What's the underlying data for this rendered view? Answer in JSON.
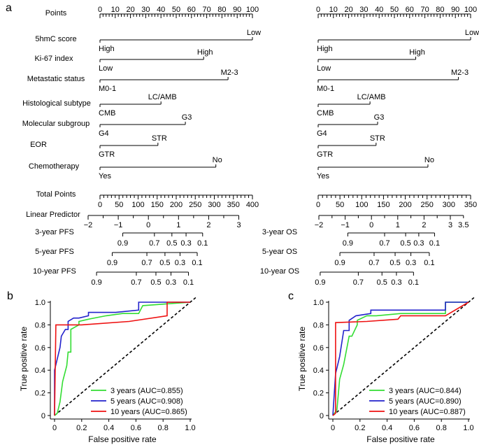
{
  "panel_labels": {
    "a": "a",
    "b": "b",
    "c": "c"
  },
  "colors": {
    "green": "#33dd33",
    "blue": "#2222cc",
    "red": "#ee1111",
    "axis": "#000000"
  },
  "chart_data": [
    {
      "type": "nomogram",
      "panel": "a-left",
      "row_labels": {
        "points": "Points",
        "hmc": "5hmC score",
        "ki67": "Ki-67 index",
        "meta": "Metastatic status",
        "histo": "Histological subtype",
        "mol": "Molecular subgroup",
        "eor": "EOR",
        "chemo": "Chemotherapy",
        "total": "Total Points",
        "lp": "Linear Predictor",
        "y3": "3-year PFS",
        "y5": "5-year PFS",
        "y10": "10-year PFS"
      },
      "points_ticks": [
        "0",
        "10",
        "20",
        "30",
        "40",
        "50",
        "60",
        "70",
        "80",
        "90",
        "100"
      ],
      "variables": [
        {
          "key": "hmc",
          "points": [
            0,
            100
          ],
          "end_labels": [
            "High",
            "Low"
          ]
        },
        {
          "key": "ki67",
          "points": [
            0,
            68
          ],
          "end_labels": [
            "Low",
            "High"
          ]
        },
        {
          "key": "meta",
          "points": [
            0,
            84
          ],
          "end_labels": [
            "M0-1",
            "M2-3"
          ]
        },
        {
          "key": "histo",
          "points": [
            0,
            40
          ],
          "end_labels": [
            "CMB",
            "LC/AMB"
          ]
        },
        {
          "key": "mol",
          "points": [
            0,
            56
          ],
          "end_labels": [
            "G4",
            "G3"
          ]
        },
        {
          "key": "eor",
          "points": [
            0,
            38
          ],
          "end_labels": [
            "GTR",
            "STR"
          ]
        },
        {
          "key": "chemo",
          "points": [
            0,
            76
          ],
          "end_labels": [
            "Yes",
            "No"
          ]
        }
      ],
      "total_points": {
        "range": [
          0,
          400
        ],
        "ticks": [
          "0",
          "50",
          "100",
          "150",
          "200",
          "250",
          "300",
          "350",
          "400"
        ]
      },
      "linear_predictor": {
        "ticks": [
          {
            "v": -2,
            "label": "−2"
          },
          {
            "v": -1,
            "label": "−1"
          },
          {
            "v": 0,
            "label": "0"
          },
          {
            "v": 1,
            "label": "1"
          },
          {
            "v": 2,
            "label": "2"
          },
          {
            "v": 3,
            "label": "3"
          }
        ]
      },
      "survival_scales": [
        {
          "key": "y3",
          "ticks": [
            {
              "lp": -0.85,
              "label": "0.9"
            },
            {
              "lp": 0.2,
              "label": "0.7"
            },
            {
              "lp": 0.78,
              "label": "0.5"
            },
            {
              "lp": 1.25,
              "label": "0.3"
            },
            {
              "lp": 1.8,
              "label": "0.1"
            }
          ]
        },
        {
          "key": "y5",
          "ticks": [
            {
              "lp": -1.2,
              "label": "0.9"
            },
            {
              "lp": -0.05,
              "label": "0.7"
            },
            {
              "lp": 0.55,
              "label": "0.5"
            },
            {
              "lp": 1.05,
              "label": "0.3"
            },
            {
              "lp": 1.62,
              "label": "0.1"
            }
          ]
        },
        {
          "key": "y10",
          "ticks": [
            {
              "lp": -1.72,
              "label": "0.9"
            },
            {
              "lp": -0.4,
              "label": "0.7"
            },
            {
              "lp": 0.25,
              "label": "0.5"
            },
            {
              "lp": 0.75,
              "label": "0.3"
            },
            {
              "lp": 1.33,
              "label": "0.1"
            }
          ]
        }
      ]
    },
    {
      "type": "nomogram",
      "panel": "a-right",
      "row_labels": {
        "y3": "3-year OS",
        "y5": "5-year OS",
        "y10": "10-year OS"
      },
      "points_ticks": [
        "0",
        "10",
        "20",
        "30",
        "40",
        "50",
        "60",
        "70",
        "80",
        "90",
        "100"
      ],
      "variables": [
        {
          "key": "hmc",
          "points": [
            0,
            100
          ],
          "end_labels": [
            "High",
            "Low"
          ]
        },
        {
          "key": "ki67",
          "points": [
            0,
            64
          ],
          "end_labels": [
            "Low",
            "High"
          ]
        },
        {
          "key": "meta",
          "points": [
            0,
            92
          ],
          "end_labels": [
            "M0-1",
            "M2-3"
          ]
        },
        {
          "key": "histo",
          "points": [
            0,
            34
          ],
          "end_labels": [
            "CMB",
            "LC/AMB"
          ]
        },
        {
          "key": "mol",
          "points": [
            0,
            39
          ],
          "end_labels": [
            "G4",
            "G3"
          ]
        },
        {
          "key": "eor",
          "points": [
            0,
            38
          ],
          "end_labels": [
            "GTR",
            "STR"
          ]
        },
        {
          "key": "chemo",
          "points": [
            0,
            72
          ],
          "end_labels": [
            "Yes",
            "No"
          ]
        }
      ],
      "total_points": {
        "range": [
          0,
          350
        ],
        "ticks": [
          "0",
          "50",
          "100",
          "150",
          "200",
          "250",
          "300",
          "350"
        ]
      },
      "linear_predictor": {
        "ticks": [
          {
            "v": -2,
            "label": "−2"
          },
          {
            "v": -1,
            "label": "−1"
          },
          {
            "v": 0,
            "label": "0"
          },
          {
            "v": 1,
            "label": "1"
          },
          {
            "v": 2,
            "label": "2"
          },
          {
            "v": 3,
            "label": "3"
          },
          {
            "v": 3.5,
            "label": "3.5"
          }
        ]
      },
      "survival_scales": [
        {
          "key": "y3",
          "ticks": [
            {
              "lp": -0.9,
              "label": "0.9"
            },
            {
              "lp": 0.5,
              "label": "0.7"
            },
            {
              "lp": 1.3,
              "label": "0.5"
            },
            {
              "lp": 1.8,
              "label": "0.3"
            },
            {
              "lp": 2.4,
              "label": "0.1"
            }
          ]
        },
        {
          "key": "y5",
          "ticks": [
            {
              "lp": -1.2,
              "label": "0.9"
            },
            {
              "lp": 0.1,
              "label": "0.7"
            },
            {
              "lp": 0.9,
              "label": "0.5"
            },
            {
              "lp": 1.5,
              "label": "0.3"
            },
            {
              "lp": 2.2,
              "label": "0.1"
            }
          ]
        },
        {
          "key": "y10",
          "ticks": [
            {
              "lp": -1.95,
              "label": "0.9"
            },
            {
              "lp": -0.5,
              "label": "0.7"
            },
            {
              "lp": 0.4,
              "label": "0.5"
            },
            {
              "lp": 0.95,
              "label": "0.3"
            },
            {
              "lp": 1.6,
              "label": "0.1"
            }
          ]
        }
      ]
    },
    {
      "type": "line",
      "panel": "b",
      "xlabel": "False positive rate",
      "ylabel": "True positive rate",
      "xlim": [
        0,
        1
      ],
      "ylim": [
        0,
        1
      ],
      "xticks": [
        "0",
        "0.2",
        "0.4",
        "0.6",
        "0.8",
        "1.0"
      ],
      "yticks": [
        "0",
        "0.2",
        "0.4",
        "0.6",
        "0.8",
        "1.0"
      ],
      "series": [
        {
          "name": "3 years (AUC=0.855)",
          "color": "green",
          "x": [
            0,
            0.02,
            0.04,
            0.06,
            0.09,
            0.1,
            0.12,
            0.12,
            0.18,
            0.18,
            0.25,
            0.38,
            0.5,
            0.62,
            0.65,
            1.0
          ],
          "y": [
            0,
            0.02,
            0.12,
            0.3,
            0.44,
            0.56,
            0.56,
            0.76,
            0.8,
            0.83,
            0.85,
            0.88,
            0.9,
            0.9,
            0.97,
            1.0
          ]
        },
        {
          "name": "5 years (AUC=0.908)",
          "color": "blue",
          "x": [
            0,
            0,
            0.04,
            0.05,
            0.08,
            0.1,
            0.1,
            0.14,
            0.18,
            0.25,
            0.25,
            0.45,
            0.62,
            0.62,
            1.0
          ],
          "y": [
            0,
            0.4,
            0.6,
            0.7,
            0.76,
            0.76,
            0.83,
            0.86,
            0.86,
            0.88,
            0.91,
            0.91,
            0.93,
            1.0,
            1.0
          ]
        },
        {
          "name": "10 years (AUC=0.865)",
          "color": "red",
          "x": [
            0,
            0.01,
            0.2,
            0.55,
            0.83,
            0.83,
            0.83,
            1.0
          ],
          "y": [
            0,
            0.8,
            0.8,
            0.83,
            0.88,
            0.88,
            1.0,
            1.0
          ]
        }
      ],
      "diagonal": true,
      "legend": "bottom-right"
    },
    {
      "type": "line",
      "panel": "c",
      "xlabel": "False positive rate",
      "ylabel": "True positive rate",
      "xlim": [
        0,
        1
      ],
      "ylim": [
        0,
        1
      ],
      "xticks": [
        "0",
        "0.2",
        "0.4",
        "0.6",
        "0.8",
        "1.0"
      ],
      "yticks": [
        "0",
        "0.2",
        "0.4",
        "0.6",
        "0.8",
        "1.0"
      ],
      "series": [
        {
          "name": "3 years (AUC=0.844)",
          "color": "green",
          "x": [
            0,
            0.03,
            0.05,
            0.08,
            0.12,
            0.14,
            0.18,
            0.18,
            0.25,
            0.32,
            0.5,
            0.83,
            0.83,
            1.0
          ],
          "y": [
            0,
            0.05,
            0.32,
            0.45,
            0.7,
            0.7,
            0.8,
            0.84,
            0.88,
            0.88,
            0.9,
            0.9,
            1.0,
            1.0
          ]
        },
        {
          "name": "5 years (AUC=0.890)",
          "color": "blue",
          "x": [
            0,
            0.02,
            0.05,
            0.08,
            0.12,
            0.12,
            0.17,
            0.28,
            0.28,
            0.83,
            0.83,
            1.0
          ],
          "y": [
            0,
            0.37,
            0.52,
            0.75,
            0.75,
            0.84,
            0.88,
            0.9,
            0.93,
            0.93,
            1.0,
            1.0
          ]
        },
        {
          "name": "10 years (AUC=0.887)",
          "color": "red",
          "x": [
            0,
            0.02,
            0.02,
            0.25,
            0.48,
            0.5,
            0.83,
            1.0
          ],
          "y": [
            0,
            0.02,
            0.82,
            0.83,
            0.85,
            0.88,
            0.88,
            1.0
          ]
        }
      ],
      "diagonal": true,
      "legend": "bottom-right"
    }
  ]
}
